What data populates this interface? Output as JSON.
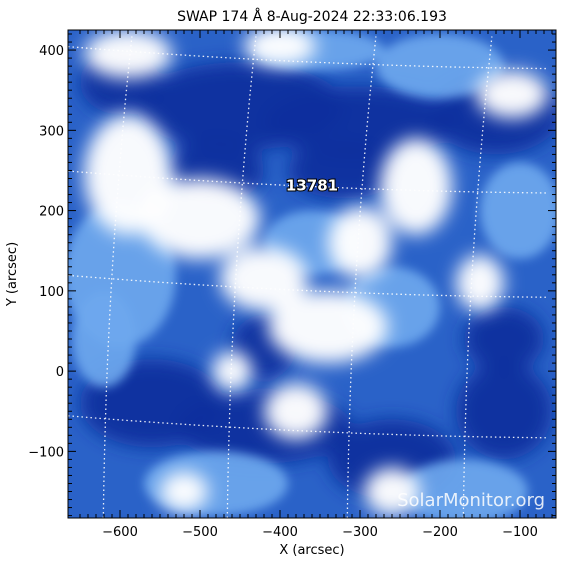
{
  "chart_data": {
    "type": "heatmap",
    "title": "SWAP 174 Å  8-Aug-2024 22:33:06.193",
    "xlabel": "X (arcsec)",
    "ylabel": "Y (arcsec)",
    "xlim": [
      -665,
      -55
    ],
    "ylim": [
      -183,
      425
    ],
    "x_ticks": [
      -600,
      -500,
      -400,
      -300,
      -200,
      -100
    ],
    "y_ticks": [
      -100,
      0,
      100,
      200,
      300,
      400
    ],
    "x_tick_labels": [
      "−600",
      "−500",
      "−400",
      "−300",
      "−200",
      "−100"
    ],
    "y_tick_labels": [
      "−100",
      "0",
      "100",
      "200",
      "300",
      "400"
    ],
    "colormap": [
      "#0b2f9e",
      "#1d5fd0",
      "#6ea8ee",
      "#ffffff"
    ],
    "grid": "heliographic dotted overlay",
    "annotations": [
      {
        "text": "13781",
        "x": -360,
        "y": 225
      }
    ],
    "watermark": "SolarMonitor.org"
  }
}
